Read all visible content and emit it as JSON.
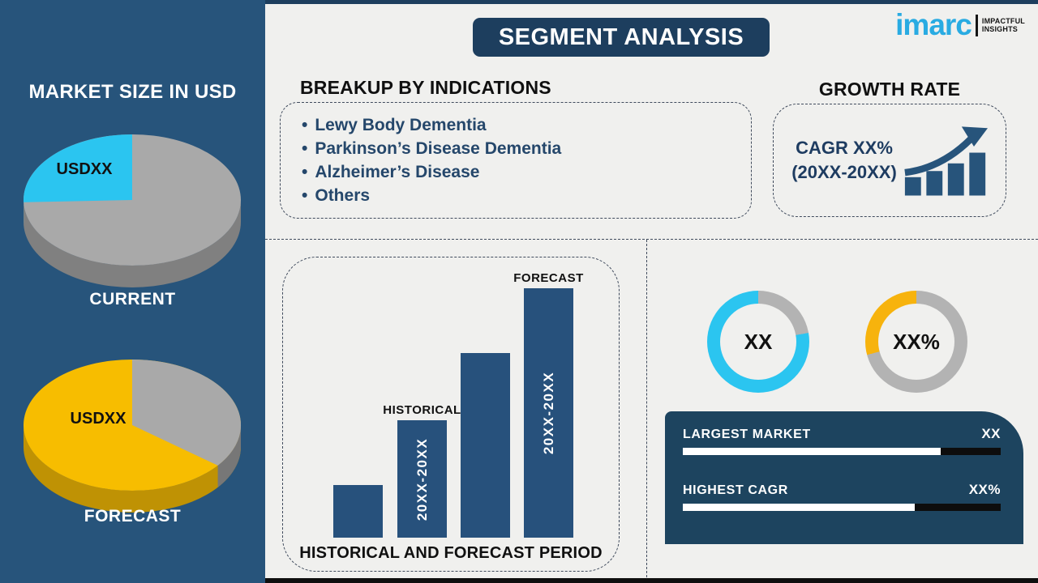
{
  "page": {
    "background": "#f0f0ee",
    "top_strip_color": "#1d3e5e",
    "bottom_strip_color": "#0e0e0e"
  },
  "header": {
    "title": "SEGMENT ANALYSIS",
    "box_color": "#1d3e5e"
  },
  "logo": {
    "brand": "imarc",
    "brand_color": "#29abe2",
    "tagline_line1": "IMPACTFUL",
    "tagline_line2": "INSIGHTS"
  },
  "sidebar": {
    "background": "#27547b",
    "title": "MARKET SIZE IN USD"
  },
  "sections": {
    "indications": {
      "heading": "BREAKUP BY INDICATIONS",
      "bullet_char": "•",
      "items": [
        "Lewy Body Dementia",
        "Parkinson’s Disease Dementia",
        "Alzheimer’s Disease",
        "Others"
      ]
    },
    "growth": {
      "heading": "GROWTH RATE",
      "cagr_line1": "CAGR XX%",
      "cagr_line2": "(20XX-20XX)"
    }
  },
  "summary_panel": {
    "background": "#1d445f",
    "rows": [
      {
        "label": "LARGEST MARKET",
        "value": "XX",
        "fill_pct": 81
      },
      {
        "label": "HIGHEST CAGR",
        "value": "XX%",
        "fill_pct": 73
      }
    ]
  },
  "chart_data": [
    {
      "type": "pie",
      "name": "current-market-size-pie",
      "caption": "CURRENT",
      "slice_label": "USDXX",
      "slice_share_pct": 26,
      "base_share_pct": 74,
      "base_color": "#a9a9a9",
      "base_side_color": "#808080",
      "slice_color": "#2bc5f0",
      "slice_side_color": "#1ba3cf",
      "slice_start_deg": 268,
      "slice_end_deg": 360
    },
    {
      "type": "pie",
      "name": "forecast-market-size-pie",
      "caption": "FORECAST",
      "slice_label": "USDXX",
      "slice_share_pct": 36,
      "base_share_pct": 64,
      "base_color": "#f7bd00",
      "base_side_color": "#bf9204",
      "slice_color": "#a9a9a9",
      "slice_side_color": "#777777",
      "slice_start_deg": 0,
      "slice_end_deg": 128
    },
    {
      "type": "bar",
      "name": "historical-forecast-period-chart",
      "title": "HISTORICAL AND FORECAST PERIOD",
      "color": "#27517c",
      "ylim": [
        0,
        100
      ],
      "bars": [
        {
          "value": 21,
          "top_label": "",
          "inner_label": ""
        },
        {
          "value": 47,
          "top_label": "HISTORICAL",
          "inner_label": "20XX-20XX"
        },
        {
          "value": 74,
          "top_label": "",
          "inner_label": ""
        },
        {
          "value": 100,
          "top_label": "FORECAST",
          "inner_label": "20XX-20XX"
        }
      ]
    },
    {
      "type": "donut",
      "name": "largest-market-donut",
      "center_label": "XX",
      "segments": [
        {
          "color": "#b3b3b3",
          "from_deg": 0,
          "to_deg": 80,
          "pct": 22
        },
        {
          "color": "#2bc5f0",
          "from_deg": 80,
          "to_deg": 360,
          "pct": 78
        }
      ]
    },
    {
      "type": "donut",
      "name": "highest-cagr-donut",
      "center_label": "XX%",
      "segments": [
        {
          "color": "#b3b3b3",
          "from_deg": 0,
          "to_deg": 255,
          "pct": 71
        },
        {
          "color": "#f7b30d",
          "from_deg": 255,
          "to_deg": 360,
          "pct": 29
        }
      ]
    }
  ]
}
